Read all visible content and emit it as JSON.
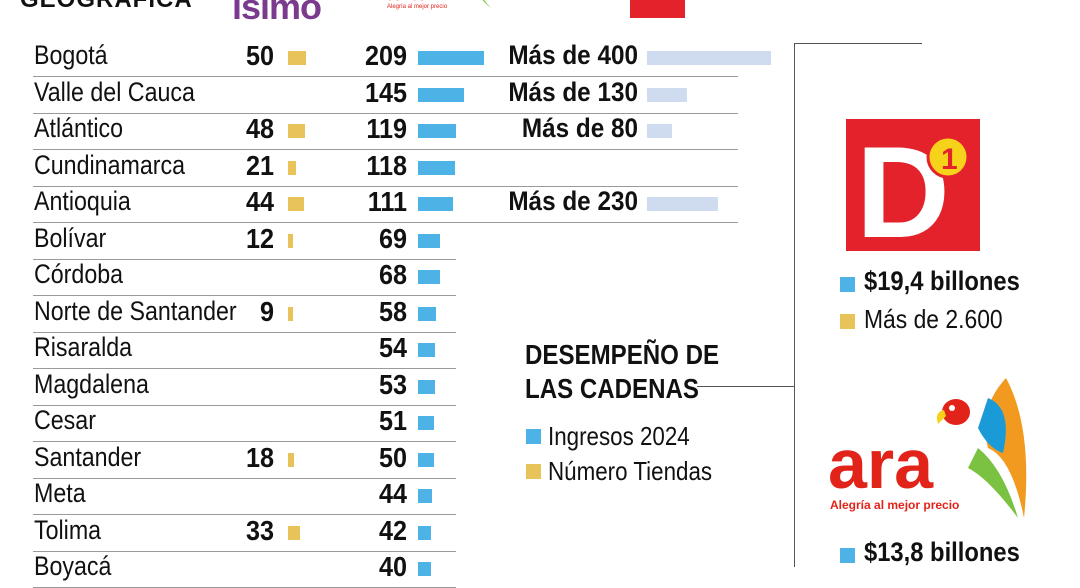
{
  "header": {
    "title": "GEOGRÁFICA"
  },
  "brands": {
    "isimo_word": "isimo",
    "ara_word": "ara",
    "ara_slogan": "Alegría al mejor precio",
    "d1_word": "D",
    "d1_digit": "1"
  },
  "colors": {
    "ingresos": "#4db3e6",
    "tiendas": "#e8c35a",
    "d1_bar": "#cfdcf0",
    "d1_red": "#e3222b",
    "ara_red": "#e2231a"
  },
  "performance": {
    "title_line1": "DESEMPEÑO DE",
    "title_line2": "LAS CADENAS",
    "legend": [
      {
        "label": "Ingresos 2024",
        "color": "#4db3e6"
      },
      {
        "label": "Número Tiendas",
        "color": "#e8c35a"
      }
    ]
  },
  "cards": {
    "d1": {
      "revenue": "$19,4 billones",
      "stores": "Más de 2.600"
    },
    "ara": {
      "revenue": "$13,8 billones"
    }
  },
  "chart_data": {
    "type": "table",
    "rows": [
      {
        "dept": "Bogotá",
        "isimo": 50,
        "ara": 209,
        "d1": "Más de 400",
        "d1_approx": 400
      },
      {
        "dept": "Valle del Cauca",
        "isimo": null,
        "ara": 145,
        "d1": "Más de 130",
        "d1_approx": 130
      },
      {
        "dept": "Atlántico",
        "isimo": 48,
        "ara": 119,
        "d1": "Más de 80",
        "d1_approx": 80
      },
      {
        "dept": "Cundinamarca",
        "isimo": 21,
        "ara": 118,
        "d1": "",
        "d1_approx": 0
      },
      {
        "dept": "Antioquia",
        "isimo": 44,
        "ara": 111,
        "d1": "Más de 230",
        "d1_approx": 230
      },
      {
        "dept": "Bolívar",
        "isimo": 12,
        "ara": 69
      },
      {
        "dept": "Córdoba",
        "isimo": null,
        "ara": 68
      },
      {
        "dept": "Norte de Santander",
        "isimo": 9,
        "ara": 58
      },
      {
        "dept": "Risaralda",
        "isimo": null,
        "ara": 54
      },
      {
        "dept": "Magdalena",
        "isimo": null,
        "ara": 53
      },
      {
        "dept": "Cesar",
        "isimo": null,
        "ara": 51
      },
      {
        "dept": "Santander",
        "isimo": 18,
        "ara": 50
      },
      {
        "dept": "Meta",
        "isimo": null,
        "ara": 44
      },
      {
        "dept": "Tolima",
        "isimo": 33,
        "ara": 42
      },
      {
        "dept": "Boyacá",
        "isimo": null,
        "ara": 40
      }
    ]
  }
}
